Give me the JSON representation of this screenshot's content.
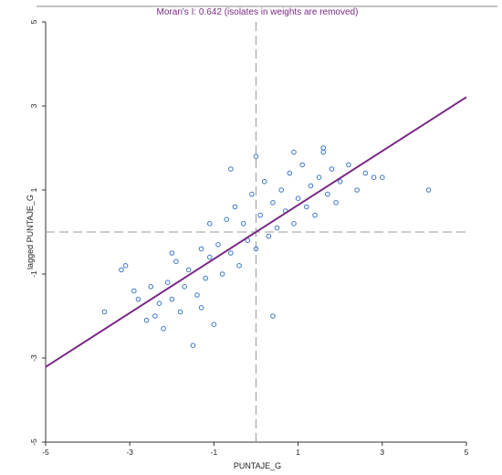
{
  "chart_data": {
    "type": "scatter",
    "title": "Moran's I: 0.642 (isolates in weights are removed)",
    "xlabel": "PUNTAJE_G",
    "ylabel": "lagged PUNTAJE_G",
    "xlim": [
      -5,
      5
    ],
    "ylim": [
      -5,
      5
    ],
    "x_ticks": [
      -5,
      -3,
      -1,
      1,
      3,
      5
    ],
    "y_ticks": [
      -5,
      -3,
      -1,
      1,
      3,
      5
    ],
    "moran_i": 0.642,
    "regression": {
      "slope": 0.642,
      "intercept": 0
    },
    "reference_lines": {
      "x": 0,
      "y": 0,
      "style": "dashed"
    },
    "colors": {
      "points": "#3b78c8",
      "regression": "#7a2a85",
      "reference": "#9a9a9a",
      "title": "#7a2a85"
    },
    "series": [
      {
        "values": [
          [
            -3.6,
            -1.9
          ],
          [
            -3.2,
            -0.9
          ],
          [
            -3.1,
            -0.8
          ],
          [
            -2.9,
            -1.4
          ],
          [
            -2.8,
            -1.6
          ],
          [
            -2.6,
            -2.1
          ],
          [
            -2.5,
            -1.3
          ],
          [
            -2.4,
            -2.0
          ],
          [
            -2.3,
            -1.7
          ],
          [
            -2.2,
            -2.3
          ],
          [
            -2.1,
            -1.2
          ],
          [
            -2.0,
            -1.6
          ],
          [
            -1.9,
            -0.7
          ],
          [
            -1.8,
            -1.9
          ],
          [
            -1.7,
            -1.3
          ],
          [
            -1.6,
            -0.9
          ],
          [
            -1.5,
            -2.7
          ],
          [
            -1.4,
            -1.5
          ],
          [
            -1.3,
            -0.4
          ],
          [
            -1.2,
            -1.1
          ],
          [
            -1.1,
            -0.6
          ],
          [
            -1.0,
            -2.2
          ],
          [
            -0.9,
            -0.3
          ],
          [
            -0.8,
            -1.0
          ],
          [
            -0.7,
            0.3
          ],
          [
            -0.6,
            -0.5
          ],
          [
            -0.5,
            0.6
          ],
          [
            -0.4,
            -0.8
          ],
          [
            -0.3,
            0.2
          ],
          [
            -0.2,
            -0.2
          ],
          [
            -0.1,
            0.9
          ],
          [
            0.0,
            -0.4
          ],
          [
            0.1,
            0.4
          ],
          [
            0.2,
            1.2
          ],
          [
            0.3,
            -0.1
          ],
          [
            0.4,
            0.7
          ],
          [
            0.5,
            0.1
          ],
          [
            0.6,
            1.0
          ],
          [
            0.7,
            0.5
          ],
          [
            0.8,
            1.4
          ],
          [
            0.9,
            0.2
          ],
          [
            1.0,
            0.8
          ],
          [
            1.1,
            1.6
          ],
          [
            1.2,
            0.6
          ],
          [
            1.3,
            1.1
          ],
          [
            1.4,
            0.4
          ],
          [
            1.5,
            1.3
          ],
          [
            1.6,
            1.9
          ],
          [
            1.7,
            0.9
          ],
          [
            1.8,
            1.5
          ],
          [
            1.9,
            0.7
          ],
          [
            2.0,
            1.2
          ],
          [
            2.2,
            1.6
          ],
          [
            2.4,
            1.0
          ],
          [
            2.6,
            1.4
          ],
          [
            2.8,
            1.3
          ],
          [
            3.0,
            1.3
          ],
          [
            4.1,
            1.0
          ],
          [
            0.4,
            -2.0
          ],
          [
            -1.3,
            -1.8
          ],
          [
            -0.6,
            1.5
          ],
          [
            0.0,
            1.8
          ],
          [
            0.9,
            1.9
          ],
          [
            1.6,
            2.0
          ],
          [
            -2.0,
            -0.5
          ],
          [
            -1.1,
            0.2
          ]
        ]
      }
    ]
  }
}
